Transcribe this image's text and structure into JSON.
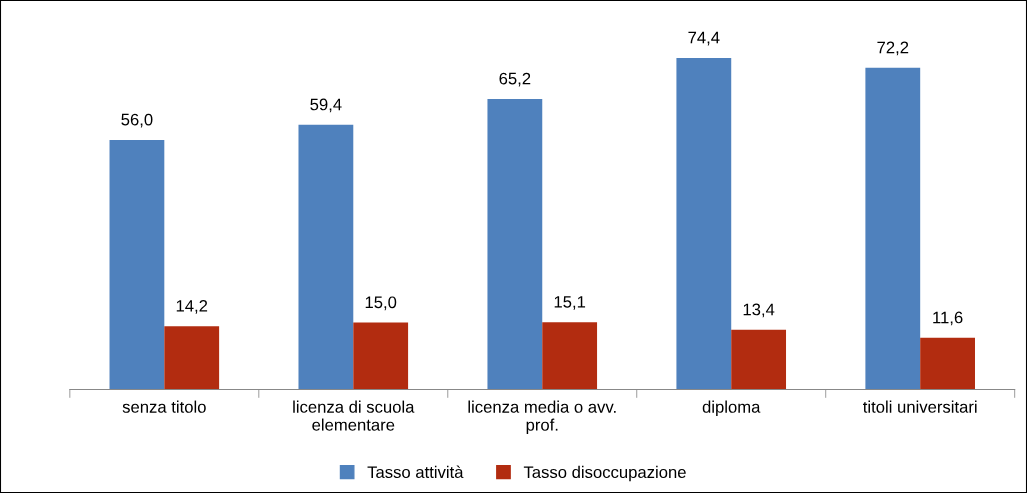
{
  "chart_data": {
    "type": "bar",
    "categories": [
      "senza titolo",
      "licenza di scuola\nelementare",
      "licenza media o avv.\nprof.",
      "diploma",
      "titoli universitari"
    ],
    "series": [
      {
        "name": "Tasso attività",
        "color": "#4f81bd",
        "values": [
          56.0,
          59.4,
          65.2,
          74.4,
          72.2
        ],
        "value_labels": [
          "56,0",
          "59,4",
          "65,2",
          "74,4",
          "72,2"
        ]
      },
      {
        "name": "Tasso disoccupazione",
        "color": "#b22c10",
        "values": [
          14.2,
          15.0,
          15.1,
          13.4,
          11.6
        ],
        "value_labels": [
          "14,2",
          "15,0",
          "15,1",
          "13,4",
          "11,6"
        ]
      }
    ],
    "legend": "bottom",
    "grid": false
  }
}
